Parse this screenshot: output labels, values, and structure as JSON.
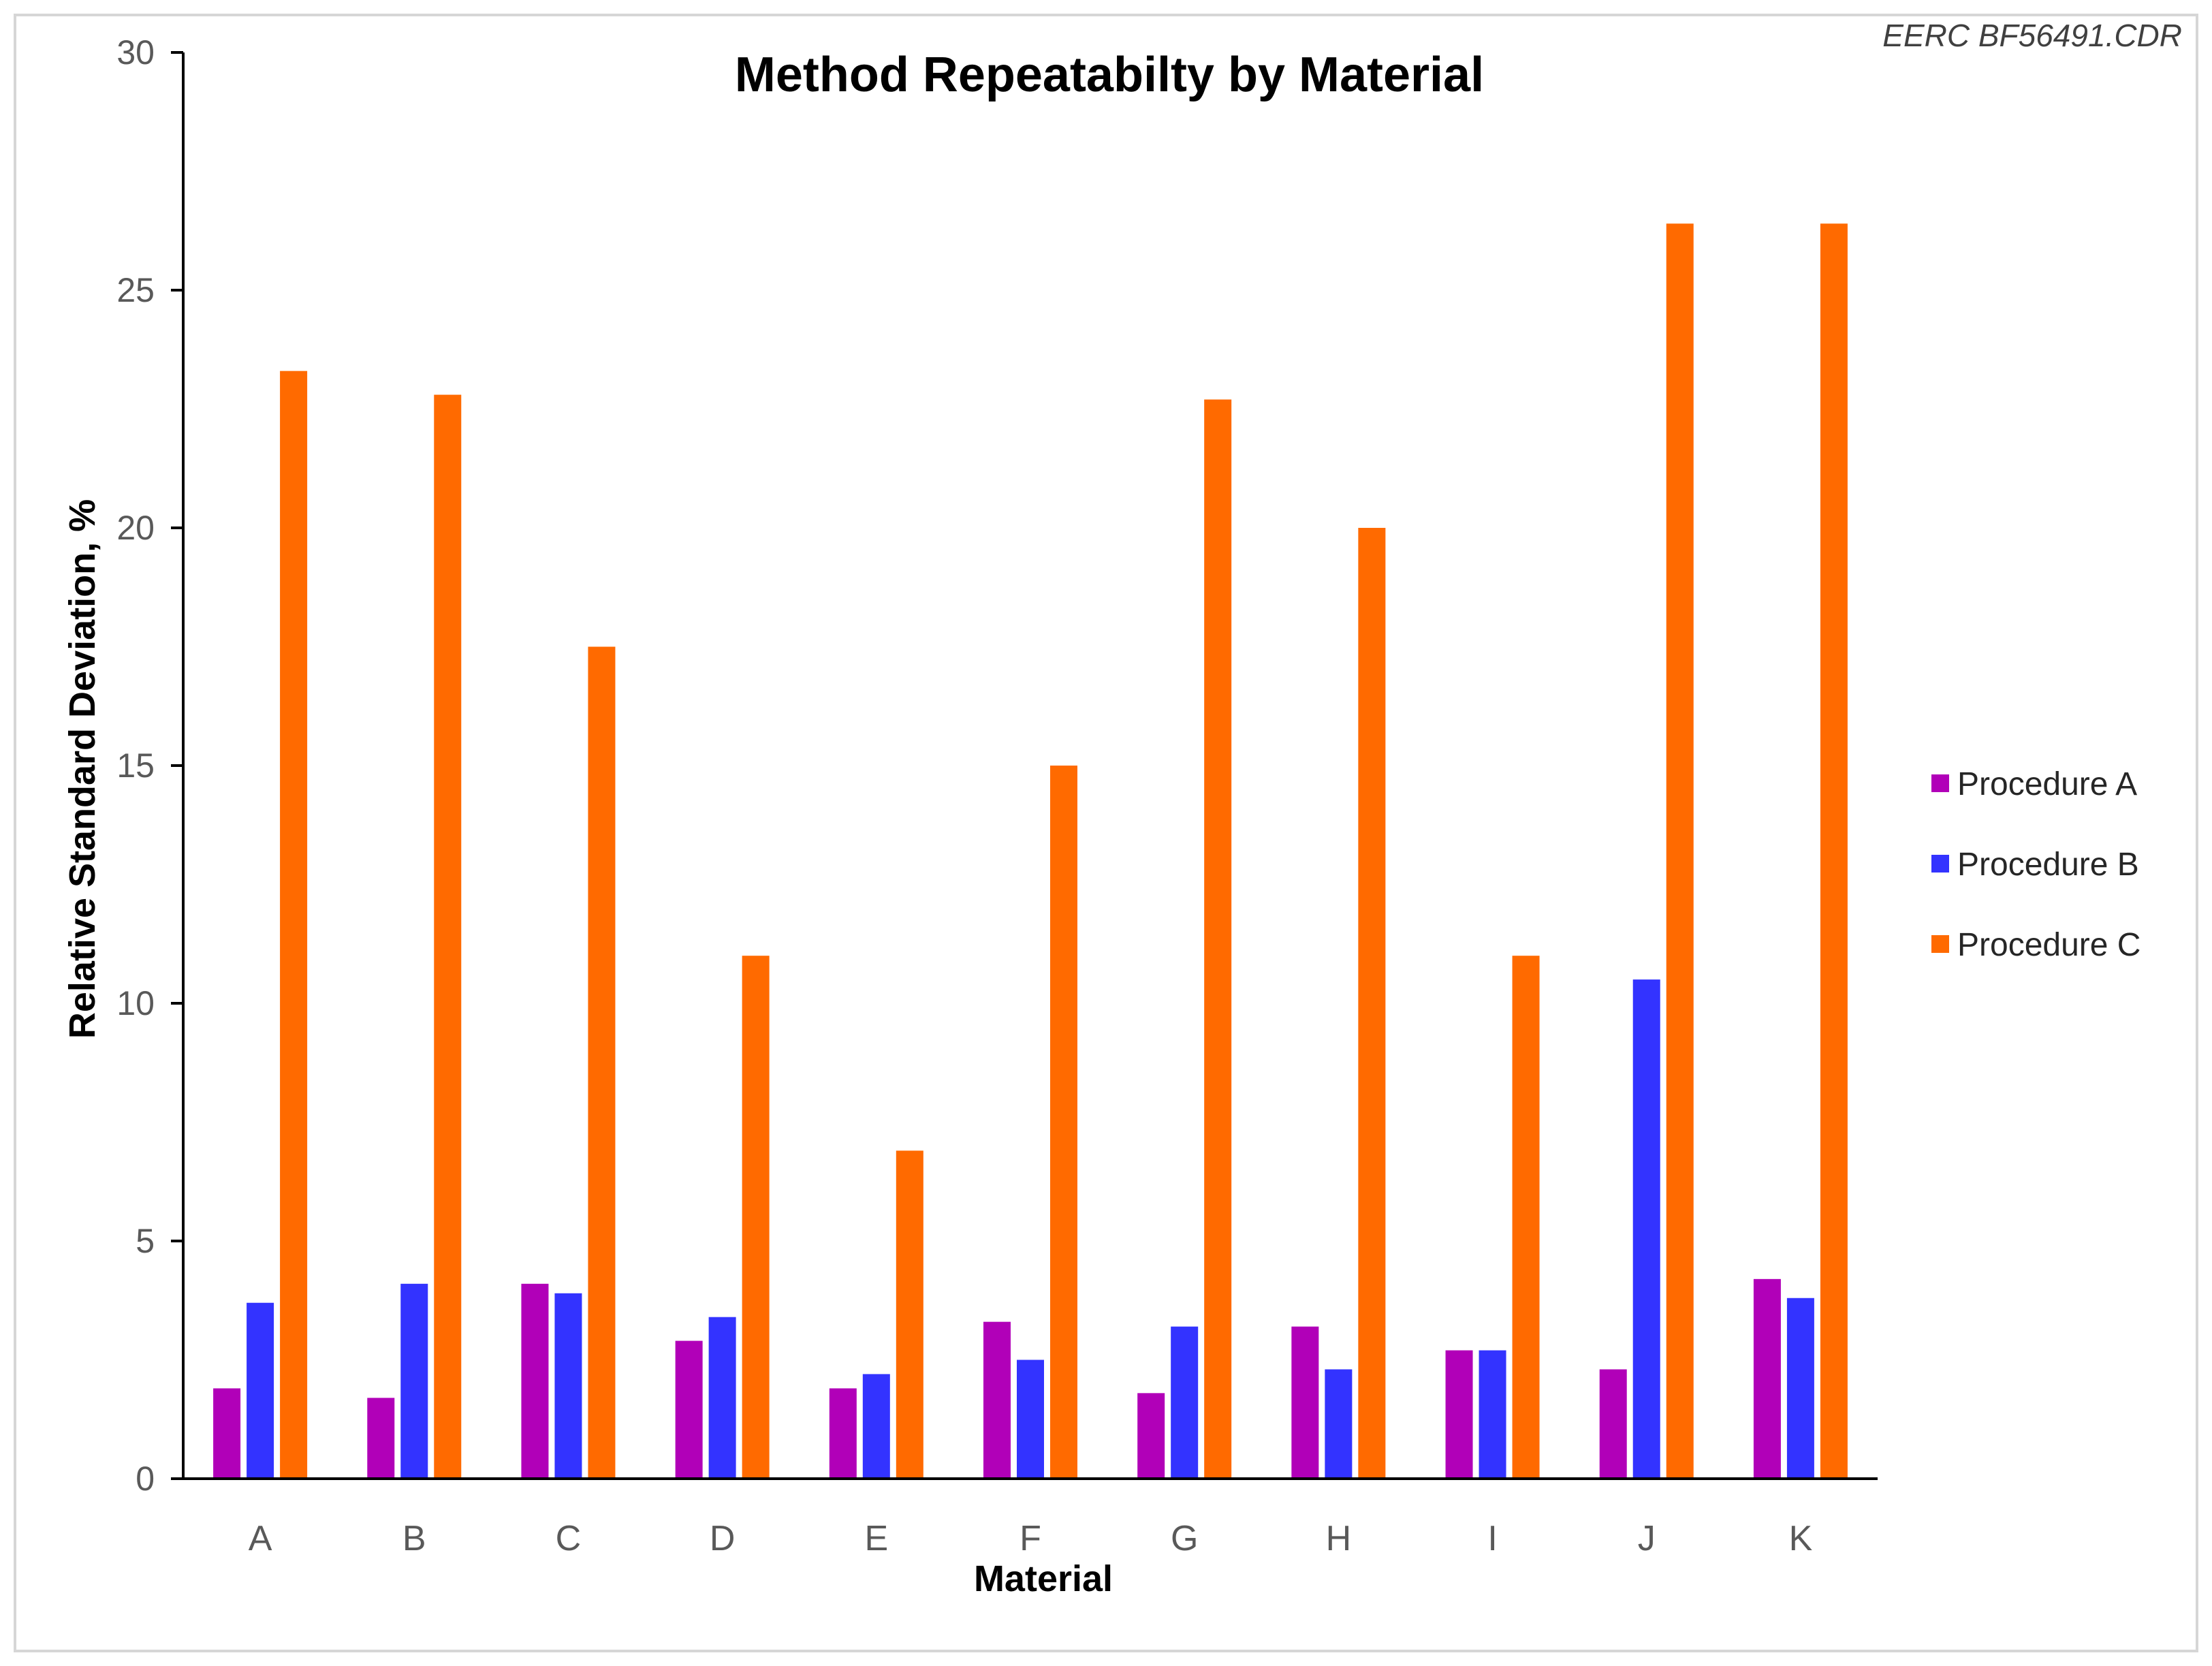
{
  "watermark": "EERC BF56491.CDR",
  "chart_data": {
    "type": "bar",
    "title": "Method Repeatabilty  by Material",
    "xlabel": "Material",
    "ylabel": "Relative Standard Deviation, %",
    "ylim": [
      0,
      30
    ],
    "yticks": [
      0,
      5,
      10,
      15,
      20,
      25,
      30
    ],
    "grid": false,
    "legend_position": "right",
    "categories": [
      "A",
      "B",
      "C",
      "D",
      "E",
      "F",
      "G",
      "H",
      "I",
      "J",
      "K"
    ],
    "series": [
      {
        "name": "Procedure A",
        "color": "#b100b8",
        "values": [
          1.9,
          1.7,
          4.1,
          2.9,
          1.9,
          3.3,
          1.8,
          3.2,
          2.7,
          2.3,
          4.2
        ]
      },
      {
        "name": "Procedure B",
        "color": "#3333ff",
        "values": [
          3.7,
          4.1,
          3.9,
          3.4,
          2.2,
          2.5,
          3.2,
          2.3,
          2.7,
          10.5,
          3.8
        ]
      },
      {
        "name": "Procedure C",
        "color": "#ff6a00",
        "values": [
          23.3,
          22.8,
          17.5,
          11.0,
          6.9,
          15.0,
          22.7,
          20.0,
          11.0,
          26.4,
          26.4
        ]
      }
    ]
  }
}
